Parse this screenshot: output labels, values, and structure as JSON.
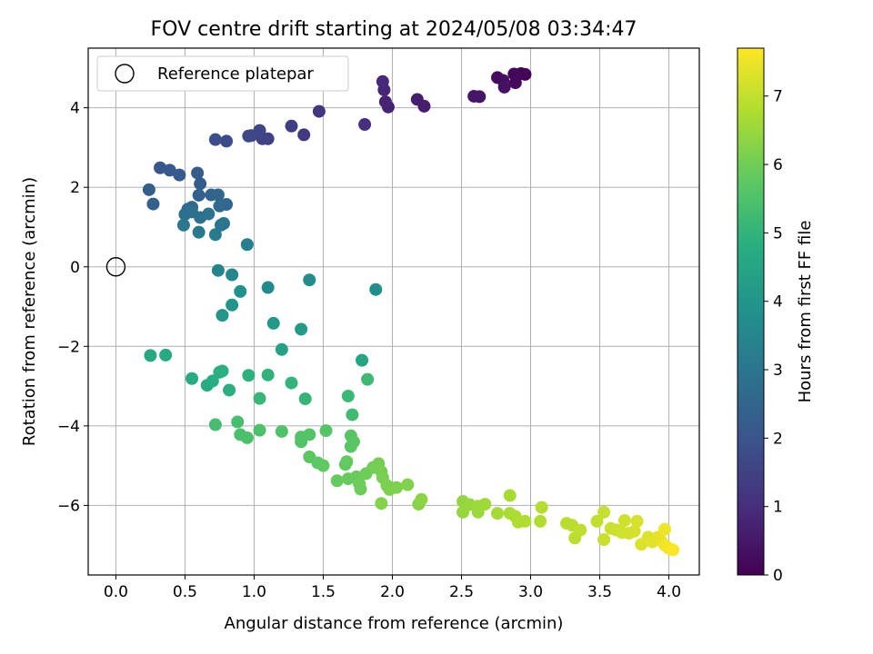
{
  "chart_data": {
    "type": "scatter",
    "title": "FOV centre drift starting at 2024/05/08 03:34:47",
    "xlabel": "Angular distance from reference (arcmin)",
    "ylabel": "Rotation from reference (arcmin)",
    "xlim": [
      -0.2,
      4.22
    ],
    "ylim": [
      -7.75,
      5.5
    ],
    "xticks": [
      0.0,
      0.5,
      1.0,
      1.5,
      2.0,
      2.5,
      3.0,
      3.5,
      4.0
    ],
    "xtick_labels": [
      "0.0",
      "0.5",
      "1.0",
      "1.5",
      "2.0",
      "2.5",
      "3.0",
      "3.5",
      "4.0"
    ],
    "yticks": [
      -6,
      -4,
      -2,
      0,
      2,
      4
    ],
    "ytick_labels": [
      "−6",
      "−4",
      "−2",
      "0",
      "2",
      "4"
    ],
    "grid": true,
    "legend": {
      "position": "upper-left",
      "entries": [
        "Reference platepar"
      ]
    },
    "reference_point": {
      "x": 0.0,
      "y": 0.0
    },
    "colorbar": {
      "label": "Hours from first FF file",
      "range": [
        0,
        7.7
      ],
      "ticks": [
        0,
        1,
        2,
        3,
        4,
        5,
        6,
        7
      ],
      "tick_labels": [
        "0",
        "1",
        "2",
        "3",
        "4",
        "5",
        "6",
        "7"
      ],
      "colormap": "viridis"
    },
    "series": [
      {
        "points": [
          [
            2.96,
            4.84,
            0.05
          ],
          [
            2.93,
            4.86,
            0.1
          ],
          [
            2.88,
            4.85,
            0.15
          ],
          [
            2.89,
            4.63,
            0.2
          ],
          [
            2.76,
            4.76,
            0.25
          ],
          [
            2.8,
            4.69,
            0.3
          ],
          [
            2.81,
            4.52,
            0.35
          ],
          [
            2.63,
            4.28,
            0.45
          ],
          [
            2.59,
            4.29,
            0.5
          ],
          [
            2.23,
            4.04,
            0.6
          ],
          [
            2.18,
            4.21,
            0.65
          ],
          [
            1.97,
            4.02,
            0.75
          ],
          [
            1.95,
            4.15,
            0.8
          ],
          [
            1.94,
            4.45,
            0.85
          ],
          [
            1.93,
            4.66,
            0.9
          ],
          [
            1.8,
            3.58,
            1.05
          ],
          [
            1.47,
            3.91,
            1.2
          ],
          [
            1.36,
            3.32,
            1.3
          ],
          [
            1.27,
            3.54,
            1.4
          ],
          [
            1.1,
            3.22,
            1.5
          ],
          [
            1.06,
            3.22,
            1.55
          ],
          [
            1.04,
            3.43,
            1.6
          ],
          [
            0.98,
            3.3,
            1.65
          ],
          [
            0.96,
            3.29,
            1.7
          ],
          [
            0.8,
            3.16,
            1.8
          ],
          [
            0.72,
            3.2,
            1.85
          ],
          [
            0.32,
            2.49,
            2.1
          ],
          [
            0.39,
            2.43,
            2.15
          ],
          [
            0.46,
            2.31,
            2.2
          ],
          [
            0.59,
            2.36,
            2.25
          ],
          [
            0.61,
            2.09,
            2.3
          ],
          [
            0.24,
            1.94,
            2.35
          ],
          [
            0.27,
            1.58,
            2.4
          ],
          [
            0.6,
            1.8,
            2.45
          ],
          [
            0.69,
            1.81,
            2.5
          ],
          [
            0.74,
            1.81,
            2.55
          ],
          [
            0.8,
            1.57,
            2.6
          ],
          [
            0.75,
            1.53,
            2.65
          ],
          [
            0.55,
            1.5,
            2.7
          ],
          [
            0.52,
            1.45,
            2.75
          ],
          [
            0.5,
            1.32,
            2.8
          ],
          [
            0.55,
            1.38,
            2.85
          ],
          [
            0.61,
            1.24,
            2.9
          ],
          [
            0.67,
            1.33,
            2.95
          ],
          [
            0.78,
            1.09,
            3.0
          ],
          [
            0.76,
            1.05,
            3.05
          ],
          [
            0.49,
            1.05,
            3.1
          ],
          [
            0.6,
            0.87,
            3.15
          ],
          [
            0.72,
            0.81,
            3.2
          ],
          [
            0.95,
            0.56,
            3.3
          ],
          [
            0.74,
            -0.09,
            3.5
          ],
          [
            0.84,
            -0.2,
            3.6
          ],
          [
            1.1,
            -0.52,
            3.7
          ],
          [
            1.4,
            -0.33,
            3.75
          ],
          [
            1.88,
            -0.57,
            3.85
          ],
          [
            0.9,
            -0.62,
            3.9
          ],
          [
            0.84,
            -0.96,
            4.0
          ],
          [
            0.77,
            -1.22,
            4.05
          ],
          [
            1.14,
            -1.42,
            4.15
          ],
          [
            1.34,
            -1.57,
            4.25
          ],
          [
            1.2,
            -2.08,
            4.45
          ],
          [
            1.78,
            -2.35,
            4.55
          ],
          [
            0.25,
            -2.23,
            4.65
          ],
          [
            0.36,
            -2.22,
            4.7
          ],
          [
            0.55,
            -2.81,
            4.75
          ],
          [
            0.66,
            -2.98,
            4.8
          ],
          [
            0.7,
            -2.87,
            4.82
          ],
          [
            0.75,
            -2.65,
            4.85
          ],
          [
            0.77,
            -2.62,
            4.88
          ],
          [
            0.82,
            -3.1,
            4.9
          ],
          [
            0.96,
            -2.73,
            4.95
          ],
          [
            1.1,
            -2.72,
            5.0
          ],
          [
            1.27,
            -2.92,
            5.05
          ],
          [
            1.37,
            -3.32,
            5.1
          ],
          [
            1.04,
            -3.31,
            5.15
          ],
          [
            1.68,
            -3.25,
            5.2
          ],
          [
            1.82,
            -2.83,
            5.25
          ],
          [
            1.71,
            -3.72,
            5.3
          ],
          [
            0.72,
            -3.97,
            5.35
          ],
          [
            0.88,
            -3.9,
            5.4
          ],
          [
            0.9,
            -4.22,
            5.45
          ],
          [
            0.95,
            -4.3,
            5.5
          ],
          [
            1.04,
            -4.11,
            5.52
          ],
          [
            1.2,
            -4.14,
            5.55
          ],
          [
            1.34,
            -4.28,
            5.58
          ],
          [
            1.34,
            -4.4,
            5.6
          ],
          [
            1.4,
            -4.22,
            5.62
          ],
          [
            1.52,
            -4.12,
            5.65
          ],
          [
            1.7,
            -4.25,
            5.68
          ],
          [
            1.72,
            -4.4,
            5.7
          ],
          [
            1.7,
            -4.52,
            5.72
          ],
          [
            1.4,
            -4.78,
            5.75
          ],
          [
            1.46,
            -4.93,
            5.78
          ],
          [
            1.5,
            -5.0,
            5.8
          ],
          [
            1.66,
            -4.97,
            5.82
          ],
          [
            1.67,
            -4.9,
            5.85
          ],
          [
            1.6,
            -5.38,
            5.88
          ],
          [
            1.68,
            -5.33,
            5.9
          ],
          [
            1.74,
            -5.28,
            5.92
          ],
          [
            1.76,
            -5.45,
            5.95
          ],
          [
            1.77,
            -5.59,
            5.97
          ],
          [
            1.81,
            -5.2,
            6.0
          ],
          [
            1.86,
            -5.05,
            6.02
          ],
          [
            1.89,
            -5.0,
            6.05
          ],
          [
            1.9,
            -4.95,
            6.07
          ],
          [
            1.92,
            -5.15,
            6.1
          ],
          [
            1.93,
            -5.3,
            6.12
          ],
          [
            1.96,
            -5.5,
            6.15
          ],
          [
            1.98,
            -5.6,
            6.17
          ],
          [
            2.03,
            -5.55,
            6.2
          ],
          [
            2.11,
            -5.48,
            6.22
          ],
          [
            1.92,
            -5.95,
            6.25
          ],
          [
            2.19,
            -5.97,
            6.3
          ],
          [
            2.21,
            -5.85,
            6.35
          ],
          [
            2.51,
            -5.9,
            6.45
          ],
          [
            2.51,
            -6.17,
            6.5
          ],
          [
            2.56,
            -5.98,
            6.52
          ],
          [
            2.62,
            -6.02,
            6.55
          ],
          [
            2.62,
            -6.17,
            6.57
          ],
          [
            2.67,
            -5.97,
            6.6
          ],
          [
            2.76,
            -6.2,
            6.65
          ],
          [
            2.85,
            -5.75,
            6.7
          ],
          [
            2.85,
            -6.2,
            6.72
          ],
          [
            2.89,
            -6.28,
            6.75
          ],
          [
            2.91,
            -6.42,
            6.77
          ],
          [
            2.96,
            -6.4,
            6.8
          ],
          [
            3.07,
            -6.4,
            6.82
          ],
          [
            3.08,
            -6.05,
            6.85
          ],
          [
            3.26,
            -6.45,
            6.9
          ],
          [
            3.3,
            -6.5,
            6.92
          ],
          [
            3.32,
            -6.82,
            6.95
          ],
          [
            3.36,
            -6.62,
            6.97
          ],
          [
            3.48,
            -6.4,
            7.0
          ],
          [
            3.53,
            -6.17,
            7.05
          ],
          [
            3.53,
            -6.86,
            7.08
          ],
          [
            3.58,
            -6.58,
            7.1
          ],
          [
            3.62,
            -6.62,
            7.12
          ],
          [
            3.66,
            -6.68,
            7.15
          ],
          [
            3.68,
            -6.38,
            7.17
          ],
          [
            3.71,
            -6.7,
            7.2
          ],
          [
            3.75,
            -6.65,
            7.22
          ],
          [
            3.77,
            -6.4,
            7.25
          ],
          [
            3.8,
            -6.98,
            7.3
          ],
          [
            3.85,
            -6.8,
            7.32
          ],
          [
            3.88,
            -6.92,
            7.35
          ],
          [
            3.92,
            -6.8,
            7.4
          ],
          [
            3.94,
            -6.88,
            7.45
          ],
          [
            3.97,
            -6.6,
            7.5
          ],
          [
            3.97,
            -7.0,
            7.55
          ],
          [
            4.0,
            -7.08,
            7.6
          ],
          [
            4.03,
            -7.12,
            7.65
          ]
        ]
      }
    ]
  }
}
